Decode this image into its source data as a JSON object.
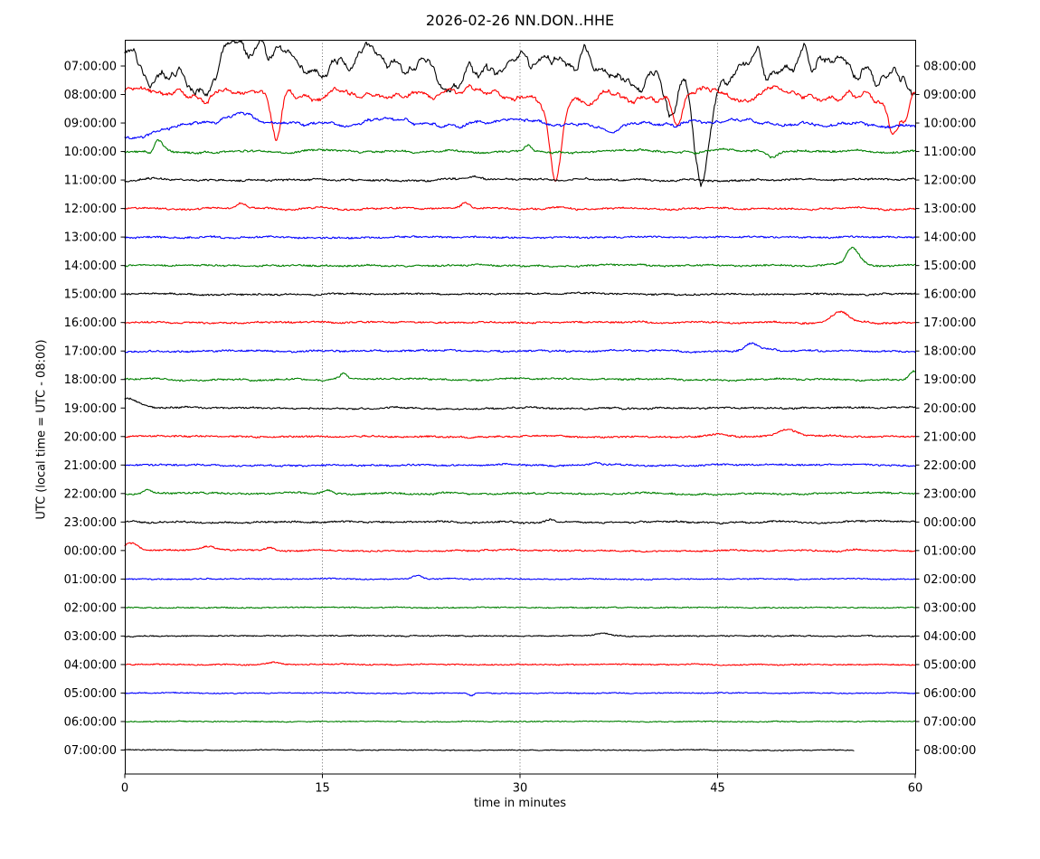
{
  "chart_data": {
    "type": "line",
    "subtype": "helicorder-dayplot",
    "title": "2026-02-26 NN.DON..HHE",
    "xlabel": "time in minutes",
    "ylabel": "UTC (local time = UTC - 08:00)",
    "xlim": [
      0,
      60
    ],
    "x_ticks": [
      "0",
      "15",
      "30",
      "45",
      "60"
    ],
    "x_tick_minutes": [
      0,
      15,
      30,
      45,
      60
    ],
    "grid_minutes": [
      15,
      30,
      45
    ],
    "grid_style": "dotted",
    "interval_minutes": 60,
    "trace_colors": {
      "black": "#000000",
      "red": "#ff0000",
      "blue": "#0000ff",
      "green": "#008000"
    },
    "frame_color": "#000000",
    "rows": [
      {
        "left_label": "07:00:00",
        "right_label": "08:00:00",
        "color": "black",
        "wander": 30,
        "fuzz": 2.5,
        "clip_top": true,
        "end_min": 60,
        "events": [
          [
            41.4,
            -48,
            0.45
          ],
          [
            43.8,
            -112,
            0.5
          ]
        ]
      },
      {
        "left_label": "08:00:00",
        "right_label": "09:00:00",
        "color": "red",
        "wander": 11,
        "fuzz": 2,
        "clip_top": false,
        "end_min": 60,
        "events": [
          [
            11.5,
            -50,
            0.35
          ],
          [
            32.7,
            -95,
            0.45
          ],
          [
            42.0,
            -33,
            0.4
          ],
          [
            58.4,
            -38,
            0.45
          ],
          [
            59.3,
            -26,
            0.3
          ]
        ]
      },
      {
        "left_label": "09:00:00",
        "right_label": "10:00:00",
        "color": "blue",
        "wander": 5.5,
        "fuzz": 1.5,
        "clip_top": false,
        "end_min": 60,
        "events": [
          [
            0,
            -16,
            2.2
          ],
          [
            8.9,
            10,
            0.8
          ],
          [
            36.9,
            -9,
            0.5
          ]
        ]
      },
      {
        "left_label": "10:00:00",
        "right_label": "11:00:00",
        "color": "green",
        "wander": 2.4,
        "fuzz": 1.2,
        "clip_top": false,
        "end_min": 60,
        "events": [
          [
            2.0,
            -6,
            0.2
          ],
          [
            2.5,
            14,
            0.4
          ],
          [
            30.6,
            6,
            0.25
          ],
          [
            49.2,
            -6,
            0.3
          ]
        ]
      },
      {
        "left_label": "11:00:00",
        "right_label": "12:00:00",
        "color": "black",
        "wander": 1.8,
        "fuzz": 1.2,
        "clip_top": false,
        "end_min": 60,
        "events": [
          [
            26.6,
            5,
            0.5
          ]
        ]
      },
      {
        "left_label": "12:00:00",
        "right_label": "13:00:00",
        "color": "red",
        "wander": 1.8,
        "fuzz": 1.1,
        "clip_top": false,
        "end_min": 60,
        "events": [
          [
            8.8,
            5,
            0.35
          ],
          [
            25.8,
            5,
            0.3
          ]
        ]
      },
      {
        "left_label": "13:00:00",
        "right_label": "14:00:00",
        "color": "blue",
        "wander": 1.4,
        "fuzz": 1.1,
        "clip_top": false,
        "end_min": 60,
        "events": []
      },
      {
        "left_label": "14:00:00",
        "right_label": "15:00:00",
        "color": "green",
        "wander": 1.4,
        "fuzz": 1.1,
        "clip_top": false,
        "end_min": 60,
        "events": [
          [
            54.6,
            -4,
            0.3
          ],
          [
            55.2,
            21,
            0.55
          ]
        ]
      },
      {
        "left_label": "15:00:00",
        "right_label": "16:00:00",
        "color": "black",
        "wander": 1.3,
        "fuzz": 1.1,
        "clip_top": false,
        "end_min": 60,
        "events": []
      },
      {
        "left_label": "16:00:00",
        "right_label": "17:00:00",
        "color": "red",
        "wander": 1.3,
        "fuzz": 1.1,
        "clip_top": false,
        "end_min": 60,
        "events": [
          [
            54.3,
            12,
            0.6
          ]
        ]
      },
      {
        "left_label": "17:00:00",
        "right_label": "18:00:00",
        "color": "blue",
        "wander": 1.3,
        "fuzz": 1.1,
        "clip_top": false,
        "end_min": 60,
        "events": [
          [
            47.6,
            9,
            0.5
          ],
          [
            48.9,
            3,
            0.6
          ]
        ]
      },
      {
        "left_label": "18:00:00",
        "right_label": "19:00:00",
        "color": "green",
        "wander": 1.4,
        "fuzz": 1.1,
        "clip_top": false,
        "end_min": 60,
        "events": [
          [
            16.6,
            6,
            0.25
          ],
          [
            59.9,
            9,
            0.3
          ]
        ]
      },
      {
        "left_label": "19:00:00",
        "right_label": "20:00:00",
        "color": "black",
        "wander": 1.4,
        "fuzz": 1.1,
        "clip_top": false,
        "end_min": 60,
        "events": [
          [
            0.2,
            10,
            0.9
          ]
        ]
      },
      {
        "left_label": "20:00:00",
        "right_label": "21:00:00",
        "color": "red",
        "wander": 1.3,
        "fuzz": 1.1,
        "clip_top": false,
        "end_min": 60,
        "events": [
          [
            44.9,
            3,
            0.5
          ],
          [
            50.3,
            8,
            0.7
          ]
        ]
      },
      {
        "left_label": "21:00:00",
        "right_label": "22:00:00",
        "color": "blue",
        "wander": 1.2,
        "fuzz": 1.1,
        "clip_top": false,
        "end_min": 60,
        "events": [
          [
            35.7,
            3,
            0.3
          ]
        ]
      },
      {
        "left_label": "22:00:00",
        "right_label": "23:00:00",
        "color": "green",
        "wander": 1.5,
        "fuzz": 1.1,
        "clip_top": false,
        "end_min": 60,
        "events": [
          [
            1.8,
            4,
            0.3
          ],
          [
            15.4,
            4,
            0.3
          ]
        ]
      },
      {
        "left_label": "23:00:00",
        "right_label": "00:00:00",
        "color": "black",
        "wander": 1.5,
        "fuzz": 1.1,
        "clip_top": false,
        "end_min": 60,
        "events": [
          [
            32.3,
            3,
            0.4
          ]
        ]
      },
      {
        "left_label": "00:00:00",
        "right_label": "01:00:00",
        "color": "red",
        "wander": 1.2,
        "fuzz": 1.0,
        "clip_top": false,
        "end_min": 60,
        "events": [
          [
            0.5,
            9,
            0.5
          ],
          [
            6.3,
            4,
            0.5
          ],
          [
            11,
            3,
            0.4
          ]
        ]
      },
      {
        "left_label": "01:00:00",
        "right_label": "02:00:00",
        "color": "blue",
        "wander": 0.6,
        "fuzz": 0.8,
        "clip_top": false,
        "end_min": 60,
        "events": [
          [
            22.2,
            4,
            0.35
          ]
        ]
      },
      {
        "left_label": "02:00:00",
        "right_label": "03:00:00",
        "color": "green",
        "wander": 0.5,
        "fuzz": 0.8,
        "clip_top": false,
        "end_min": 60,
        "events": []
      },
      {
        "left_label": "03:00:00",
        "right_label": "04:00:00",
        "color": "black",
        "wander": 0.8,
        "fuzz": 0.8,
        "clip_top": false,
        "end_min": 60,
        "events": [
          [
            36.3,
            3,
            0.5
          ]
        ]
      },
      {
        "left_label": "04:00:00",
        "right_label": "05:00:00",
        "color": "red",
        "wander": 0.7,
        "fuzz": 0.8,
        "clip_top": false,
        "end_min": 60,
        "events": [
          [
            11.3,
            3,
            0.5
          ]
        ]
      },
      {
        "left_label": "05:00:00",
        "right_label": "06:00:00",
        "color": "blue",
        "wander": 0.5,
        "fuzz": 0.7,
        "clip_top": false,
        "end_min": 60,
        "events": [
          [
            26.3,
            -3,
            0.2
          ]
        ]
      },
      {
        "left_label": "06:00:00",
        "right_label": "07:00:00",
        "color": "green",
        "wander": 0.5,
        "fuzz": 0.7,
        "clip_top": false,
        "end_min": 60,
        "events": []
      },
      {
        "left_label": "07:00:00",
        "right_label": "08:00:00",
        "color": "black",
        "wander": 0.5,
        "fuzz": 0.6,
        "clip_top": false,
        "end_min": 55.4,
        "events": []
      }
    ]
  }
}
